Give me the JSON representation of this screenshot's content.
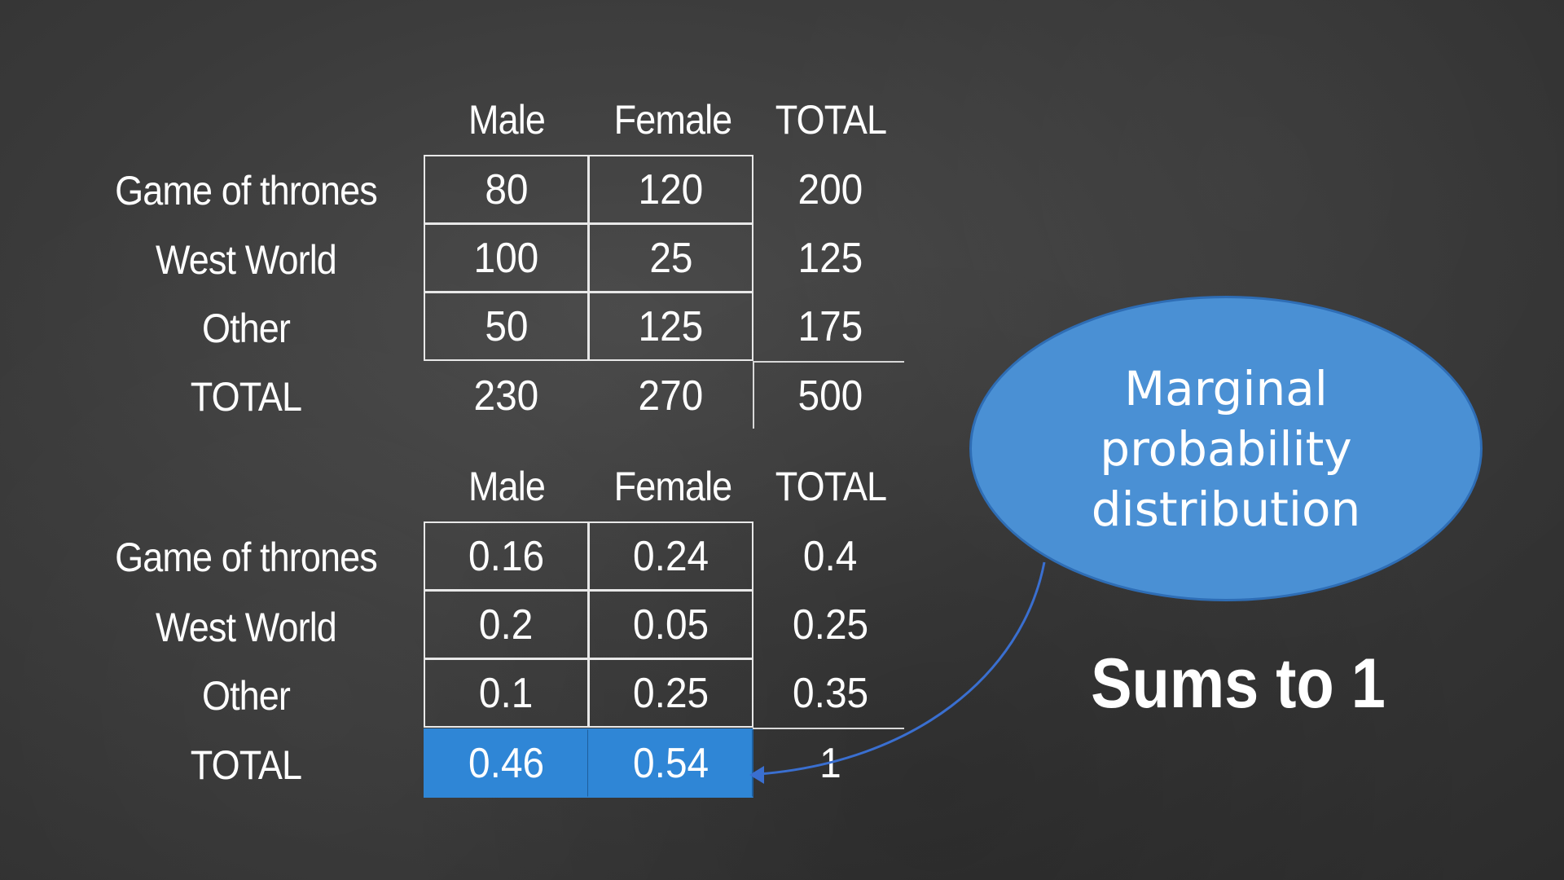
{
  "table1": {
    "headers": [
      "Male",
      "Female",
      "TOTAL"
    ],
    "rows": [
      {
        "label": "Game of thrones",
        "values": [
          "80",
          "120",
          "200"
        ]
      },
      {
        "label": "West World",
        "values": [
          "100",
          "25",
          "125"
        ]
      },
      {
        "label": "Other",
        "values": [
          "50",
          "125",
          "175"
        ]
      },
      {
        "label": "TOTAL",
        "values": [
          "230",
          "270",
          "500"
        ]
      }
    ]
  },
  "table2": {
    "headers": [
      "Male",
      "Female",
      "TOTAL"
    ],
    "rows": [
      {
        "label": "Game of thrones",
        "values": [
          "0.16",
          "0.24",
          "0.4"
        ]
      },
      {
        "label": "West World",
        "values": [
          "0.2",
          "0.05",
          "0.25"
        ]
      },
      {
        "label": "Other",
        "values": [
          "0.1",
          "0.25",
          "0.35"
        ]
      },
      {
        "label": "TOTAL",
        "values": [
          "0.46",
          "0.54",
          "1"
        ]
      }
    ]
  },
  "callout": {
    "text": "Marginal probability distribution"
  },
  "note": {
    "text": "Sums to 1"
  },
  "colors": {
    "highlight": "#2f86d6",
    "callout_fill": "#4a90d4",
    "arrow": "#3a6fd0"
  }
}
